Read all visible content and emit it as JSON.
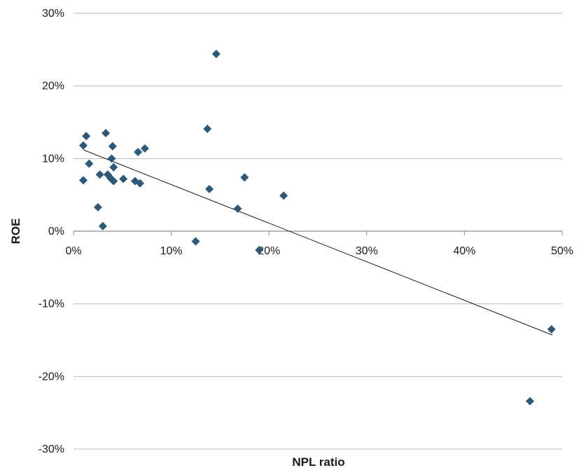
{
  "chart_data": {
    "type": "scatter",
    "xlabel": "NPL ratio",
    "ylabel": "ROE",
    "xlim": [
      0,
      0.5
    ],
    "ylim": [
      -0.3,
      0.3
    ],
    "x_ticks": [
      {
        "value": 0.0,
        "label": "0%"
      },
      {
        "value": 0.1,
        "label": "10%"
      },
      {
        "value": 0.2,
        "label": "20%"
      },
      {
        "value": 0.3,
        "label": "30%"
      },
      {
        "value": 0.4,
        "label": "40%"
      },
      {
        "value": 0.5,
        "label": "50%"
      }
    ],
    "y_ticks": [
      {
        "value": 0.3,
        "label": "30%"
      },
      {
        "value": 0.2,
        "label": "20%"
      },
      {
        "value": 0.1,
        "label": "10%"
      },
      {
        "value": 0.0,
        "label": "0%"
      },
      {
        "value": -0.1,
        "label": "-10%"
      },
      {
        "value": -0.2,
        "label": "-20%"
      },
      {
        "value": -0.3,
        "label": "-30%"
      }
    ],
    "grid": "horizontal",
    "marker_color": "#2e5878",
    "trendline": {
      "x": [
        0.01,
        0.49
      ],
      "y": [
        0.112,
        -0.143
      ],
      "color": "#1a1a1a"
    },
    "points": [
      {
        "x": 0.01,
        "y": 0.118
      },
      {
        "x": 0.013,
        "y": 0.131
      },
      {
        "x": 0.01,
        "y": 0.07
      },
      {
        "x": 0.016,
        "y": 0.093
      },
      {
        "x": 0.025,
        "y": 0.033
      },
      {
        "x": 0.027,
        "y": 0.078
      },
      {
        "x": 0.03,
        "y": 0.007
      },
      {
        "x": 0.033,
        "y": 0.135
      },
      {
        "x": 0.035,
        "y": 0.078
      },
      {
        "x": 0.038,
        "y": 0.073
      },
      {
        "x": 0.039,
        "y": 0.1
      },
      {
        "x": 0.04,
        "y": 0.117
      },
      {
        "x": 0.041,
        "y": 0.088
      },
      {
        "x": 0.041,
        "y": 0.069
      },
      {
        "x": 0.051,
        "y": 0.072
      },
      {
        "x": 0.063,
        "y": 0.069
      },
      {
        "x": 0.066,
        "y": 0.109
      },
      {
        "x": 0.068,
        "y": 0.066
      },
      {
        "x": 0.073,
        "y": 0.114
      },
      {
        "x": 0.125,
        "y": -0.014
      },
      {
        "x": 0.137,
        "y": 0.141
      },
      {
        "x": 0.139,
        "y": 0.058
      },
      {
        "x": 0.146,
        "y": 0.244
      },
      {
        "x": 0.168,
        "y": 0.031
      },
      {
        "x": 0.175,
        "y": 0.074
      },
      {
        "x": 0.19,
        "y": -0.026
      },
      {
        "x": 0.215,
        "y": 0.049
      },
      {
        "x": 0.467,
        "y": -0.234
      },
      {
        "x": 0.489,
        "y": -0.135
      }
    ]
  }
}
